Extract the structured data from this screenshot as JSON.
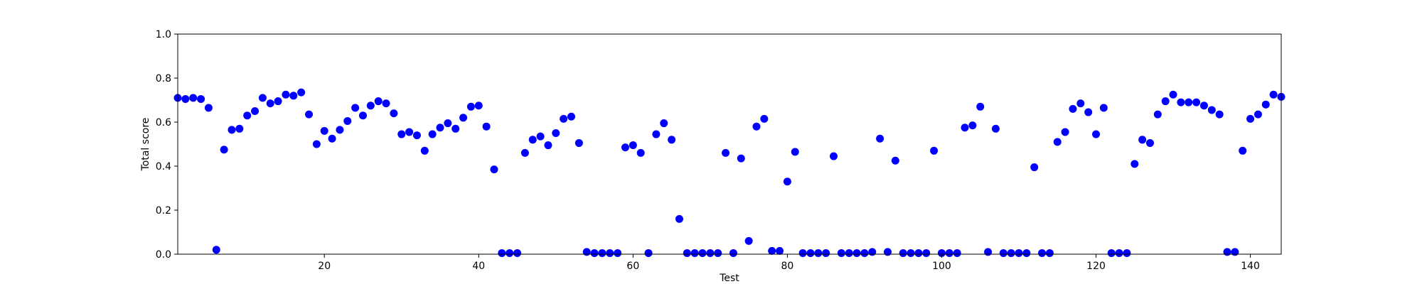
{
  "chart_data": {
    "type": "scatter",
    "title": "",
    "xlabel": "Test",
    "ylabel": "Total score",
    "xlim": [
      1,
      144
    ],
    "ylim": [
      0.0,
      1.0
    ],
    "x_ticks": [
      20,
      40,
      60,
      80,
      100,
      120,
      140
    ],
    "x_tick_labels": [
      "20",
      "40",
      "60",
      "80",
      "100",
      "120",
      "140"
    ],
    "y_ticks": [
      0.0,
      0.2,
      0.4,
      0.6,
      0.8,
      1.0
    ],
    "y_tick_labels": [
      "0.0",
      "0.2",
      "0.4",
      "0.6",
      "0.8",
      "1.0"
    ],
    "grid": false,
    "marker_color": "#0000ff",
    "series": [
      {
        "x": [
          1,
          2,
          3,
          4,
          5,
          6,
          7,
          8,
          9,
          10,
          11,
          12,
          13,
          14,
          15,
          16,
          17,
          18,
          19,
          20,
          21,
          22,
          23,
          24,
          25,
          26,
          27,
          28,
          29,
          30,
          31,
          32,
          33,
          34,
          35,
          36,
          37,
          38,
          39,
          40,
          41,
          42,
          43,
          44,
          45,
          46,
          47,
          48,
          49,
          50,
          51,
          52,
          53,
          54,
          55,
          56,
          57,
          58,
          59,
          60,
          61,
          62,
          63,
          64,
          65,
          66,
          67,
          68,
          69,
          70,
          71,
          72,
          73,
          74,
          75,
          76,
          77,
          78,
          79,
          80,
          81,
          82,
          83,
          84,
          85,
          86,
          87,
          88,
          89,
          90,
          91,
          92,
          93,
          94,
          95,
          96,
          97,
          98,
          99,
          100,
          101,
          102,
          103,
          104,
          105,
          106,
          107,
          108,
          109,
          110,
          111,
          112,
          113,
          114,
          115,
          116,
          117,
          118,
          119,
          120,
          121,
          122,
          123,
          124,
          125,
          126,
          127,
          128,
          129,
          130,
          131,
          132,
          133,
          134,
          135,
          136,
          137,
          138,
          139,
          140,
          141,
          142,
          143,
          144
        ],
        "y": [
          0.71,
          0.705,
          0.71,
          0.705,
          0.665,
          0.02,
          0.475,
          0.565,
          0.57,
          0.63,
          0.65,
          0.71,
          0.685,
          0.695,
          0.725,
          0.72,
          0.735,
          0.635,
          0.5,
          0.56,
          0.525,
          0.565,
          0.605,
          0.665,
          0.63,
          0.675,
          0.695,
          0.685,
          0.64,
          0.545,
          0.555,
          0.54,
          0.47,
          0.545,
          0.575,
          0.595,
          0.57,
          0.62,
          0.67,
          0.675,
          0.58,
          0.385,
          0.005,
          0.005,
          0.005,
          0.46,
          0.52,
          0.535,
          0.495,
          0.55,
          0.615,
          0.625,
          0.505,
          0.01,
          0.005,
          0.005,
          0.005,
          0.005,
          0.485,
          0.495,
          0.46,
          0.005,
          0.545,
          0.595,
          0.52,
          0.16,
          0.005,
          0.005,
          0.005,
          0.005,
          0.005,
          0.46,
          0.005,
          0.435,
          0.06,
          0.58,
          0.615,
          0.015,
          0.015,
          0.33,
          0.465,
          0.005,
          0.005,
          0.005,
          0.005,
          0.445,
          0.005,
          0.005,
          0.005,
          0.005,
          0.01,
          0.525,
          0.01,
          0.425,
          0.005,
          0.005,
          0.005,
          0.005,
          0.47,
          0.005,
          0.005,
          0.005,
          0.575,
          0.585,
          0.67,
          0.01,
          0.57,
          0.005,
          0.005,
          0.005,
          0.005,
          0.395,
          0.005,
          0.005,
          0.51,
          0.555,
          0.66,
          0.685,
          0.645,
          0.545,
          0.665,
          0.005,
          0.005,
          0.005,
          0.41,
          0.52,
          0.505,
          0.635,
          0.695,
          0.725,
          0.69,
          0.69,
          0.69,
          0.675,
          0.655,
          0.635,
          0.01,
          0.01,
          0.47,
          0.615,
          0.635,
          0.68,
          0.725,
          0.715
        ]
      }
    ]
  }
}
